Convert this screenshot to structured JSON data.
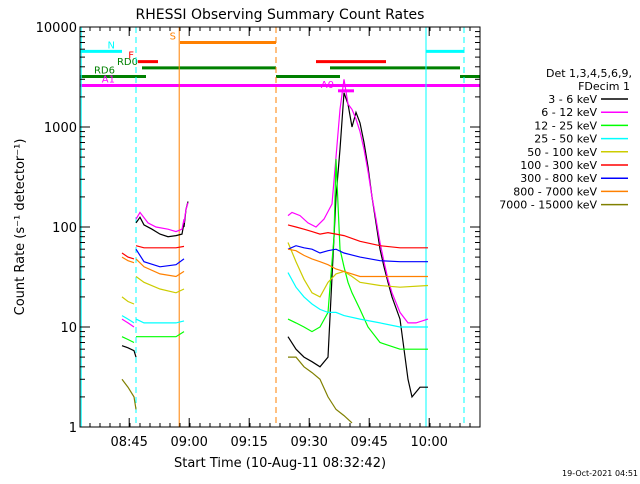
{
  "chart_data": {
    "type": "line",
    "title": "RHESSI Observing Summary Count Rates",
    "xlabel": "Start Time (10-Aug-11 08:32:42)",
    "ylabel": "Count Rate (s⁻¹ detector⁻¹)",
    "x_unit": "minutes since 08:32:42",
    "xlim": [
      0,
      100
    ],
    "ylim": [
      1,
      10000
    ],
    "yscale": "log",
    "x_ticks": [
      {
        "x": 12.3,
        "label": "08:45"
      },
      {
        "x": 27.3,
        "label": "09:00"
      },
      {
        "x": 42.3,
        "label": "09:15"
      },
      {
        "x": 57.3,
        "label": "09:30"
      },
      {
        "x": 72.3,
        "label": "09:45"
      },
      {
        "x": 87.3,
        "label": "10:00"
      }
    ],
    "y_ticks": [
      {
        "y": 1,
        "label": "1"
      },
      {
        "y": 10,
        "label": "10"
      },
      {
        "y": 100,
        "label": "100"
      },
      {
        "y": 1000,
        "label": "1000"
      },
      {
        "y": 10000,
        "label": "10000"
      }
    ],
    "legend_header": [
      "Det 1,3,4,5,6,9,",
      "FDecim 1"
    ],
    "legend_position": "right",
    "series": [
      {
        "name": "3 - 6 keV",
        "color": "#000000",
        "segments": [
          [
            [
              10.5,
              6.5
            ],
            [
              12,
              6.2
            ],
            [
              13.5,
              5.8
            ],
            [
              14,
              5
            ]
          ],
          [
            [
              14,
              110
            ],
            [
              15,
              125
            ],
            [
              16,
              105
            ],
            [
              18,
              95
            ],
            [
              20,
              85
            ],
            [
              22,
              80
            ],
            [
              24,
              82
            ],
            [
              25.5,
              85
            ],
            [
              26,
              110
            ]
          ],
          [
            [
              26,
              100
            ],
            [
              26.5,
              150
            ],
            [
              27,
              180
            ]
          ],
          [
            [
              52,
              8
            ],
            [
              54,
              6
            ],
            [
              56,
              5
            ],
            [
              58,
              4.5
            ],
            [
              60,
              4
            ],
            [
              62,
              5
            ],
            [
              64,
              200
            ],
            [
              65,
              600
            ],
            [
              66,
              2200
            ],
            [
              67,
              1700
            ],
            [
              68,
              1000
            ],
            [
              69,
              1400
            ],
            [
              70,
              1100
            ],
            [
              71,
              700
            ],
            [
              72,
              400
            ],
            [
              73,
              200
            ],
            [
              74,
              110
            ],
            [
              75,
              60
            ],
            [
              76,
              40
            ],
            [
              77,
              28
            ],
            [
              78,
              20
            ],
            [
              80,
              12
            ],
            [
              82,
              3
            ],
            [
              83,
              2
            ],
            [
              85,
              2.5
            ],
            [
              87,
              2.5
            ]
          ]
        ]
      },
      {
        "name": "6 - 12 keV",
        "color": "#ff00ff",
        "segments": [
          [
            [
              10.5,
              12
            ],
            [
              12,
              11
            ],
            [
              13.5,
              10
            ]
          ],
          [
            [
              14,
              120
            ],
            [
              15,
              140
            ],
            [
              17,
              110
            ],
            [
              19,
              100
            ],
            [
              22,
              95
            ],
            [
              24,
              90
            ],
            [
              25.5,
              95
            ],
            [
              26,
              120
            ]
          ],
          [
            [
              26,
              110
            ],
            [
              26.5,
              150
            ],
            [
              27,
              175
            ]
          ],
          [
            [
              52,
              130
            ],
            [
              53,
              140
            ],
            [
              55,
              130
            ],
            [
              57,
              110
            ],
            [
              59,
              100
            ],
            [
              61,
              120
            ],
            [
              63,
              170
            ],
            [
              64,
              500
            ],
            [
              65,
              1500
            ],
            [
              66,
              3000
            ],
            [
              67,
              1700
            ],
            [
              68,
              1500
            ],
            [
              69,
              1200
            ],
            [
              70,
              900
            ],
            [
              71,
              600
            ],
            [
              72,
              360
            ],
            [
              73,
              200
            ],
            [
              74,
              120
            ],
            [
              75,
              70
            ],
            [
              76,
              45
            ],
            [
              77,
              30
            ],
            [
              78,
              22
            ],
            [
              80,
              14
            ],
            [
              82,
              11
            ],
            [
              84,
              11
            ],
            [
              87,
              12
            ]
          ]
        ]
      },
      {
        "name": "12 - 25 keV",
        "color": "#00ff00",
        "segments": [
          [
            [
              10.5,
              8
            ],
            [
              12,
              7.5
            ],
            [
              13.5,
              7
            ]
          ],
          [
            [
              14,
              8
            ],
            [
              16,
              8
            ],
            [
              20,
              8
            ],
            [
              24,
              8
            ],
            [
              26,
              9
            ]
          ],
          [
            [
              52,
              12
            ],
            [
              54,
              11
            ],
            [
              56,
              10
            ],
            [
              58,
              9
            ],
            [
              60,
              10
            ],
            [
              62,
              14
            ],
            [
              63.5,
              80
            ],
            [
              64,
              480
            ],
            [
              65,
              60
            ],
            [
              66,
              40
            ],
            [
              67,
              28
            ],
            [
              68,
              22
            ],
            [
              70,
              15
            ],
            [
              72,
              10
            ],
            [
              75,
              7
            ],
            [
              80,
              6
            ],
            [
              87,
              6
            ]
          ]
        ]
      },
      {
        "name": "25 - 50 keV",
        "color": "#00ffff",
        "segments": [
          [
            [
              10.5,
              13
            ],
            [
              12,
              12
            ],
            [
              13.5,
              11
            ]
          ],
          [
            [
              14,
              12
            ],
            [
              16,
              11
            ],
            [
              20,
              11
            ],
            [
              24,
              11
            ],
            [
              26,
              11.5
            ]
          ],
          [
            [
              52,
              35
            ],
            [
              54,
              25
            ],
            [
              56,
              20
            ],
            [
              58,
              17
            ],
            [
              60,
              15
            ],
            [
              62,
              14
            ],
            [
              64,
              14
            ],
            [
              66,
              13
            ],
            [
              70,
              12
            ],
            [
              75,
              11
            ],
            [
              80,
              10
            ],
            [
              87,
              10
            ]
          ]
        ]
      },
      {
        "name": "50 - 100 keV",
        "color": "#cccc00",
        "segments": [
          [
            [
              10.5,
              20
            ],
            [
              12,
              18
            ],
            [
              13.5,
              17
            ]
          ],
          [
            [
              14,
              32
            ],
            [
              16,
              28
            ],
            [
              20,
              24
            ],
            [
              24,
              22
            ],
            [
              26,
              24
            ]
          ],
          [
            [
              52,
              70
            ],
            [
              54,
              45
            ],
            [
              56,
              30
            ],
            [
              58,
              22
            ],
            [
              60,
              20
            ],
            [
              62,
              28
            ],
            [
              64,
              34
            ],
            [
              66,
              36
            ],
            [
              68,
              32
            ],
            [
              70,
              28
            ],
            [
              75,
              26
            ],
            [
              80,
              25
            ],
            [
              87,
              26
            ]
          ]
        ]
      },
      {
        "name": "100 - 300 keV",
        "color": "#ff0000",
        "segments": [
          [
            [
              10.5,
              55
            ],
            [
              12,
              50
            ],
            [
              13.5,
              48
            ]
          ],
          [
            [
              14,
              65
            ],
            [
              16,
              62
            ],
            [
              20,
              62
            ],
            [
              24,
              62
            ],
            [
              26,
              64
            ]
          ],
          [
            [
              52,
              105
            ],
            [
              54,
              100
            ],
            [
              56,
              95
            ],
            [
              58,
              90
            ],
            [
              60,
              85
            ],
            [
              62,
              88
            ],
            [
              64,
              85
            ],
            [
              66,
              82
            ],
            [
              70,
              72
            ],
            [
              75,
              65
            ],
            [
              80,
              62
            ],
            [
              85,
              62
            ],
            [
              87,
              62
            ]
          ]
        ]
      },
      {
        "name": "300 - 800 keV",
        "color": "#0000ff",
        "segments": [
          [
            [
              14,
              60
            ],
            [
              16,
              45
            ],
            [
              20,
              40
            ],
            [
              24,
              42
            ],
            [
              26,
              48
            ]
          ],
          [
            [
              52,
              60
            ],
            [
              54,
              65
            ],
            [
              56,
              62
            ],
            [
              58,
              60
            ],
            [
              60,
              55
            ],
            [
              62,
              58
            ],
            [
              64,
              60
            ],
            [
              66,
              55
            ],
            [
              70,
              50
            ],
            [
              75,
              46
            ],
            [
              80,
              45
            ],
            [
              87,
              45
            ]
          ]
        ]
      },
      {
        "name": "800 - 7000 keV",
        "color": "#ff8000",
        "segments": [
          [
            [
              10.5,
              50
            ],
            [
              12,
              46
            ],
            [
              13.5,
              44
            ]
          ],
          [
            [
              14,
              48
            ],
            [
              16,
              40
            ],
            [
              20,
              34
            ],
            [
              24,
              32
            ],
            [
              26,
              36
            ]
          ],
          [
            [
              52,
              60
            ],
            [
              54,
              58
            ],
            [
              56,
              52
            ],
            [
              58,
              48
            ],
            [
              60,
              45
            ],
            [
              62,
              42
            ],
            [
              64,
              38
            ],
            [
              66,
              36
            ],
            [
              70,
              32
            ],
            [
              75,
              32
            ],
            [
              80,
              32
            ],
            [
              87,
              32
            ]
          ]
        ]
      },
      {
        "name": "7000 - 15000 keV",
        "color": "#808000",
        "segments": [
          [
            [
              10.5,
              3
            ],
            [
              12,
              2.5
            ],
            [
              13.5,
              2
            ],
            [
              14,
              1.5
            ]
          ],
          [
            [
              52,
              5
            ],
            [
              54,
              5
            ],
            [
              56,
              4
            ],
            [
              58,
              3.5
            ],
            [
              60,
              3
            ],
            [
              62,
              2
            ],
            [
              64,
              1.5
            ],
            [
              66,
              1.3
            ],
            [
              68,
              1.1
            ]
          ]
        ]
      }
    ],
    "flags": [
      {
        "label": "N",
        "color": "#00ffff",
        "y": 5700,
        "segments": [
          [
            0,
            10.5
          ],
          [
            86.5,
            96
          ]
        ]
      },
      {
        "label": "S",
        "color": "#ff8000",
        "y": 7000,
        "segments": [
          [
            25,
            49
          ]
        ]
      },
      {
        "label": "F",
        "color": "#ff0000",
        "y": 4500,
        "segments": [
          [
            14.5,
            19.5
          ],
          [
            59,
            76.5
          ]
        ]
      },
      {
        "label": "RD0",
        "color": "#008000",
        "y": 3900,
        "segments": [
          [
            15.5,
            49
          ],
          [
            62.5,
            95
          ]
        ]
      },
      {
        "label": "RD6",
        "color": "#008000",
        "y": 3200,
        "segments": [
          [
            0,
            16.5
          ],
          [
            49,
            65
          ],
          [
            95,
            100
          ]
        ]
      },
      {
        "label": "A0",
        "color": "#ff00ff",
        "y": 2300,
        "segments": [
          [
            64.5,
            68.5
          ]
        ]
      },
      {
        "label": "A1",
        "color": "#ff00ff",
        "y": 2600,
        "segments": [
          [
            0,
            100
          ]
        ]
      }
    ],
    "vertical_markers": [
      {
        "x": 0.3,
        "color": "#00ffff",
        "style": "solid"
      },
      {
        "x": 14,
        "color": "#00ffff",
        "style": "dashed"
      },
      {
        "x": 24.8,
        "color": "#ff8000",
        "style": "solid"
      },
      {
        "x": 49,
        "color": "#ff8000",
        "style": "dashed"
      },
      {
        "x": 86.5,
        "color": "#00ffff",
        "style": "solid"
      },
      {
        "x": 96,
        "color": "#00ffff",
        "style": "dashed"
      }
    ],
    "footer": "19-Oct-2021 04:51"
  }
}
